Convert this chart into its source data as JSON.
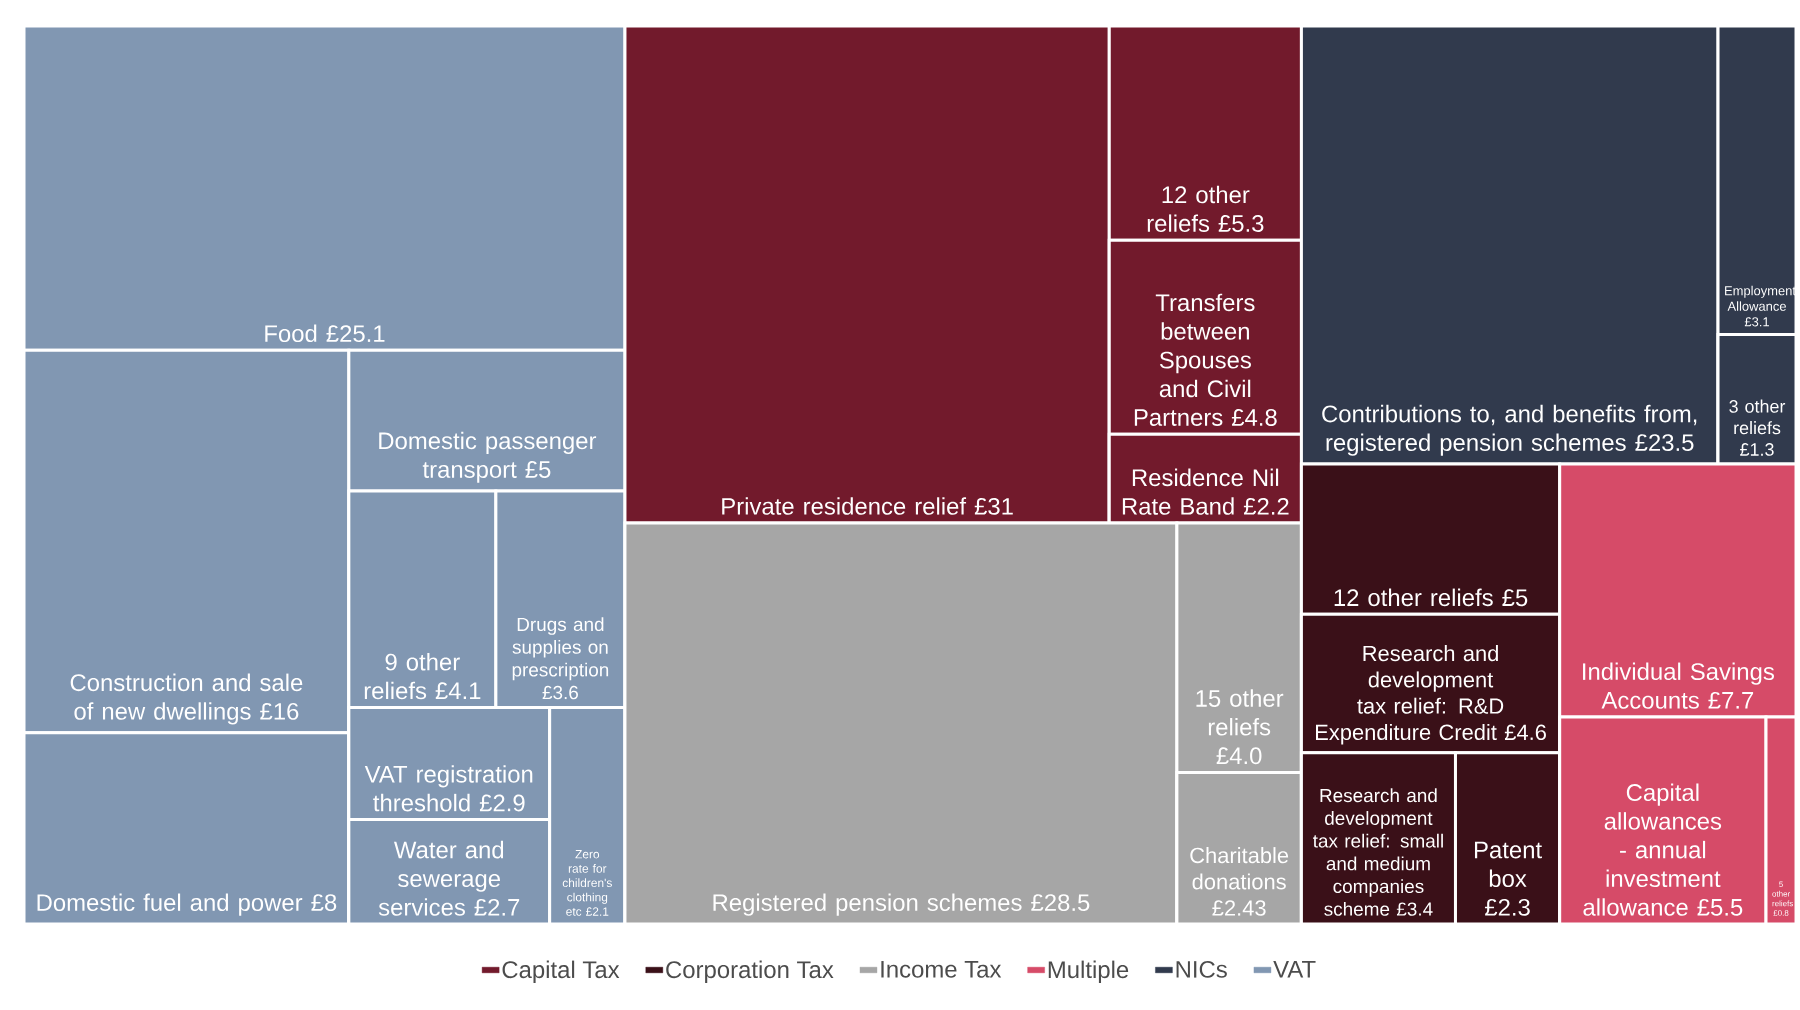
{
  "chart_data": {
    "type": "other",
    "legend": "bottom",
    "categories": [
      "Private residence relief",
      "12 other reliefs",
      "Transfers between Spouses and Civil Partners",
      "Residence Nil Rate Band",
      "12 other reliefs",
      "Research and development tax relief: R&D Expenditure Credit",
      "Research and development tax relief: small and medium companies scheme",
      "Patent box",
      "Registered pension schemes",
      "15 other reliefs",
      "Charitable donations",
      "Individual Savings Accounts",
      "Capital allowances - annual investment allowance",
      "5 other reliefs",
      "Contributions to, and benefits from, registered pension schemes",
      "Employment Allowance",
      "3 other reliefs",
      "Food",
      "Construction and sale of new dwellings",
      "Domestic fuel and power",
      "Domestic passenger transport",
      "9 other reliefs",
      "Drugs and supplies on prescription",
      "VAT registration threshold",
      "Water and sewerage services",
      "Zero rate for children's clothing etc"
    ],
    "series": [
      {
        "name": "Capital Tax",
        "color": "#721a2c",
        "values": [
          31,
          5.3,
          4.8,
          2.2,
          null,
          null,
          null,
          null,
          null,
          null,
          null,
          null,
          null,
          null,
          null,
          null,
          null,
          null,
          null,
          null,
          null,
          null,
          null,
          null,
          null,
          null
        ],
        "value_labels": [
          "£31",
          "£5.3",
          "£4.8",
          "£2.2",
          null,
          null,
          null,
          null,
          null,
          null,
          null,
          null,
          null,
          null,
          null,
          null,
          null,
          null,
          null,
          null,
          null,
          null,
          null,
          null,
          null,
          null
        ]
      },
      {
        "name": "Corporation Tax",
        "color": "#3a1018",
        "values": [
          null,
          null,
          null,
          null,
          5,
          4.6,
          3.4,
          2.3,
          null,
          null,
          null,
          null,
          null,
          null,
          null,
          null,
          null,
          null,
          null,
          null,
          null,
          null,
          null,
          null,
          null,
          null
        ],
        "value_labels": [
          null,
          null,
          null,
          null,
          "£5",
          "£4.6",
          "£3.4",
          "£2.3",
          null,
          null,
          null,
          null,
          null,
          null,
          null,
          null,
          null,
          null,
          null,
          null,
          null,
          null,
          null,
          null,
          null,
          null
        ]
      },
      {
        "name": "Income Tax",
        "color": "#a6a6a6",
        "values": [
          null,
          null,
          null,
          null,
          null,
          null,
          null,
          null,
          28.5,
          4.0,
          2.43,
          null,
          null,
          null,
          null,
          null,
          null,
          null,
          null,
          null,
          null,
          null,
          null,
          null,
          null,
          null
        ],
        "value_labels": [
          null,
          null,
          null,
          null,
          null,
          null,
          null,
          null,
          "£28.5",
          "£4.0",
          "£2.43",
          null,
          null,
          null,
          null,
          null,
          null,
          null,
          null,
          null,
          null,
          null,
          null,
          null,
          null,
          null
        ]
      },
      {
        "name": "Multiple",
        "color": "#d64b68",
        "values": [
          null,
          null,
          null,
          null,
          null,
          null,
          null,
          null,
          null,
          null,
          null,
          7.7,
          5.5,
          0.8,
          null,
          null,
          null,
          null,
          null,
          null,
          null,
          null,
          null,
          null,
          null,
          null
        ],
        "value_labels": [
          null,
          null,
          null,
          null,
          null,
          null,
          null,
          null,
          null,
          null,
          null,
          "£7.7",
          "£5.5",
          "£0.8",
          null,
          null,
          null,
          null,
          null,
          null,
          null,
          null,
          null,
          null,
          null,
          null
        ]
      },
      {
        "name": "NICs",
        "color": "#313a4d",
        "values": [
          null,
          null,
          null,
          null,
          null,
          null,
          null,
          null,
          null,
          null,
          null,
          null,
          null,
          null,
          23.5,
          3.1,
          1.3,
          null,
          null,
          null,
          null,
          null,
          null,
          null,
          null,
          null
        ],
        "value_labels": [
          null,
          null,
          null,
          null,
          null,
          null,
          null,
          null,
          null,
          null,
          null,
          null,
          null,
          null,
          "£23.5",
          "£3.1",
          "£1.3",
          null,
          null,
          null,
          null,
          null,
          null,
          null,
          null,
          null
        ]
      },
      {
        "name": "VAT",
        "color": "#8197b2",
        "values": [
          null,
          null,
          null,
          null,
          null,
          null,
          null,
          null,
          null,
          null,
          null,
          null,
          null,
          null,
          null,
          null,
          null,
          25.1,
          16,
          8,
          5,
          4.1,
          3.6,
          2.9,
          2.7,
          2.1
        ],
        "value_labels": [
          null,
          null,
          null,
          null,
          null,
          null,
          null,
          null,
          null,
          null,
          null,
          null,
          null,
          null,
          null,
          null,
          null,
          "£25.1",
          "£16",
          "£8",
          "£5",
          "£4.1",
          "£3.6",
          "£2.9",
          "£2.7",
          "£2.1"
        ]
      }
    ]
  }
}
